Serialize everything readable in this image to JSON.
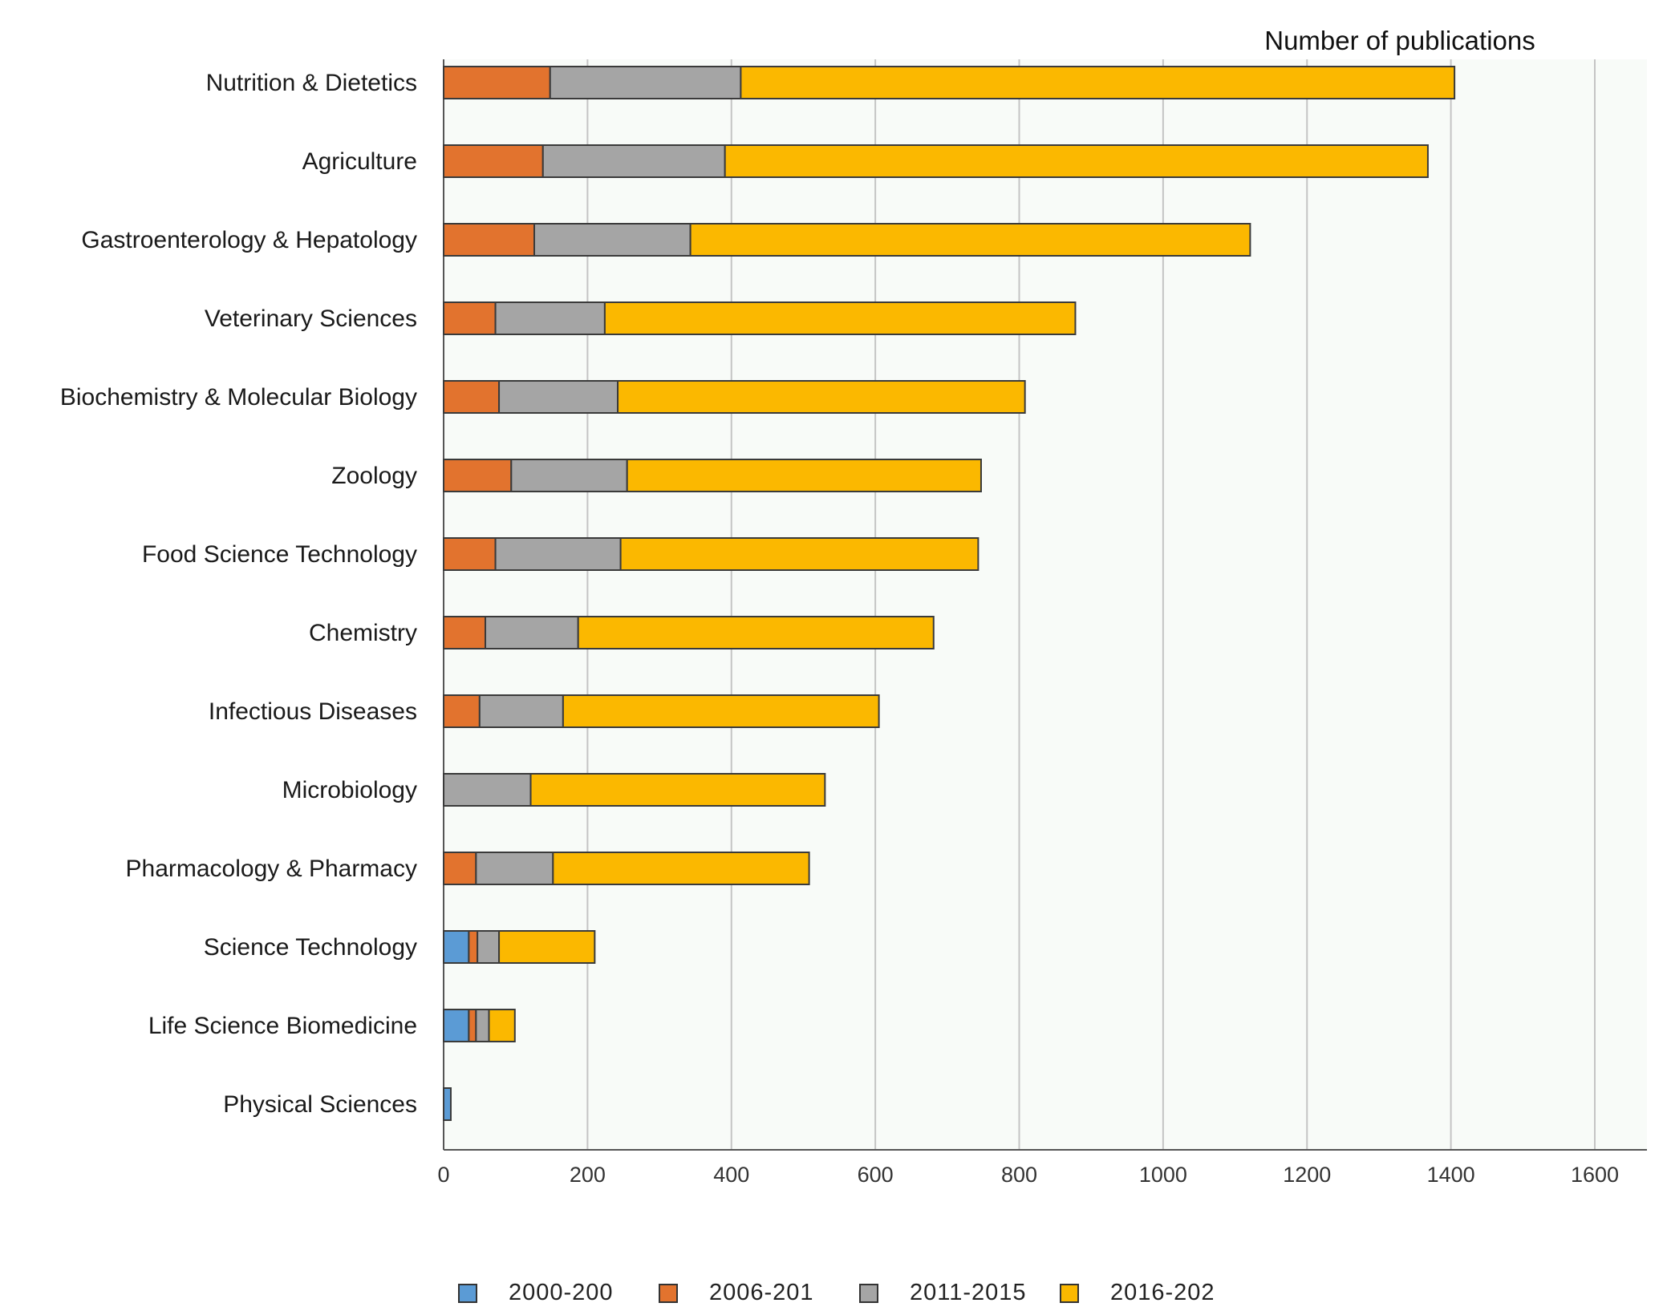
{
  "chart_data": {
    "type": "bar",
    "orientation": "horizontal",
    "stacked": true,
    "title": "",
    "xlabel": "Number of publications",
    "ylabel": "",
    "xlim": [
      0,
      1600
    ],
    "xticks": [
      0,
      200,
      400,
      600,
      800,
      1000,
      1200,
      1400,
      1600
    ],
    "grid": "vertical",
    "legend_position": "bottom",
    "categories": [
      "Nutrition & Dietetics",
      "Agriculture",
      "Gastroenterology & Hepatology",
      "Veterinary Sciences",
      "Biochemistry & Molecular Biology",
      "Zoology",
      "Food Science Technology",
      "Chemistry",
      "Infectious Diseases",
      "Microbiology",
      "Pharmacology & Pharmacy",
      "Science Technology",
      "Life Science Biomedicine",
      "Physical Sciences"
    ],
    "series": [
      {
        "name": "2000-200",
        "color": "#5b9bd5",
        "values": [
          0,
          0,
          0,
          0,
          0,
          0,
          0,
          0,
          0,
          0,
          0,
          35,
          35,
          10
        ]
      },
      {
        "name": "2006-201",
        "color": "#e2732e",
        "values": [
          148,
          138,
          126,
          72,
          77,
          94,
          72,
          58,
          50,
          0,
          45,
          12,
          10,
          0
        ]
      },
      {
        "name": "2011-2015",
        "color": "#a5a5a5",
        "values": [
          265,
          253,
          217,
          152,
          165,
          161,
          174,
          129,
          116,
          121,
          107,
          30,
          18,
          0
        ]
      },
      {
        "name": "2016-202",
        "color": "#fbb800",
        "values": [
          992,
          977,
          778,
          654,
          566,
          492,
          497,
          494,
          439,
          409,
          356,
          133,
          36,
          0
        ]
      }
    ]
  }
}
